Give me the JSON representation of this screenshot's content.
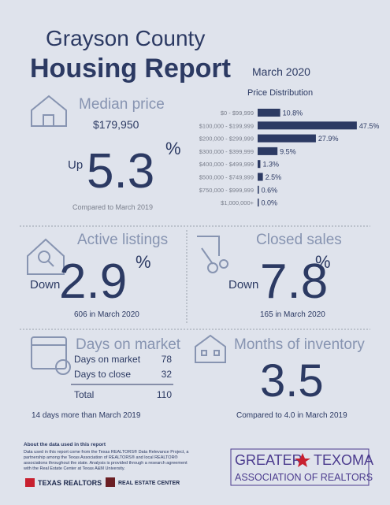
{
  "header": {
    "title_line1": "Grayson County",
    "title_line2": "Housing Report",
    "date": "March 2020"
  },
  "median_price": {
    "heading": "Median price",
    "value": "$179,950",
    "direction": "Up",
    "change": 5.3,
    "unit": "%",
    "note": "Compared to March 2019"
  },
  "price_distribution": {
    "title": "Price Distribution",
    "categories": [
      "$0 - $99,999",
      "$100,000 - $199,999",
      "$200,000 - $299,999",
      "$300,000 - $399,999",
      "$400,000 - $499,999",
      "$500,000 - $749,999",
      "$750,000 - $999,999",
      "$1,000,000+"
    ],
    "values": [
      10.8,
      47.5,
      27.9,
      9.5,
      1.3,
      2.5,
      0.6,
      0.0
    ],
    "value_labels": [
      "10.8%",
      "47.5%",
      "27.9%",
      "9.5%",
      "1.3%",
      "2.5%",
      "0.6%",
      "0.0%"
    ],
    "color": "#2c3a63"
  },
  "active_listings": {
    "heading": "Active listings",
    "direction": "Down",
    "change": 2.9,
    "unit": "%",
    "note": "606 in March 2020"
  },
  "closed_sales": {
    "heading": "Closed sales",
    "direction": "Down",
    "change": 7.8,
    "unit": "%",
    "note": "165 in March 2020"
  },
  "days_on_market": {
    "heading": "Days on market",
    "rows": [
      [
        "Days on market",
        78
      ],
      [
        "Days to close",
        32
      ],
      [
        "Total",
        110
      ]
    ],
    "note": "14 days more than March 2019"
  },
  "months_of_inventory": {
    "heading": "Months of inventory",
    "value": 3.5,
    "note": "Compared to 4.0 in March 2019"
  },
  "footer": {
    "about_title": "About the data used in this report",
    "about_lines": [
      "Data used in this report come from the Texas REALTORS® Data Relevance Project, a",
      "partnership among the Texas Association of REALTORS® and local REALTOR®",
      "associations throughout the state. Analysis is provided through a research agreement",
      "with the Real Estate Center at Texas A&M University."
    ],
    "logo_texas_realtors": "TEXAS REALTORS",
    "logo_real_estate_center": "REAL ESTATE CENTER",
    "logo_greater": "GREATER",
    "logo_texoma": "TEXOMA",
    "logo_association": "ASSOCIATION OF REALTORS"
  }
}
